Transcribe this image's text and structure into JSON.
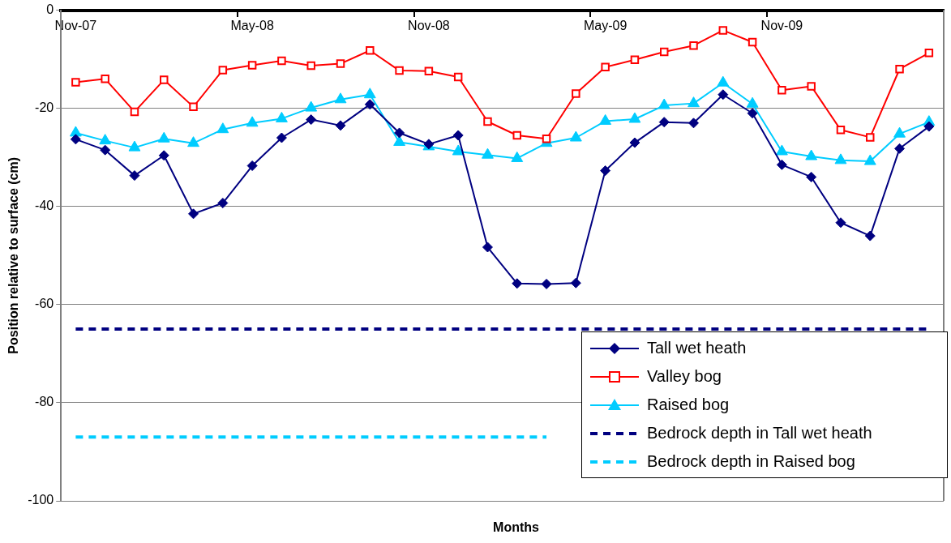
{
  "chart_data": {
    "type": "line",
    "xlabel": "Months",
    "ylabel": "Position relative to surface (cm)",
    "categories": [
      "Nov-07",
      null,
      null,
      null,
      null,
      null,
      "May-08",
      null,
      null,
      null,
      null,
      null,
      "Nov-08",
      null,
      null,
      null,
      null,
      null,
      "May-09",
      null,
      null,
      null,
      null,
      null,
      "Nov-09",
      null,
      null,
      null,
      null,
      null
    ],
    "series": [
      {
        "name": "Tall wet heath",
        "color": "#000080",
        "marker": "diamond",
        "values": [
          -26.3,
          -28.5,
          -33.7,
          -29.6,
          -41.5,
          -39.3,
          -31.7,
          -26,
          -22.3,
          -23.5,
          -19.2,
          -25,
          -27.3,
          -25.5,
          -48.3,
          -55.7,
          -55.8,
          -55.6,
          -32.7,
          -27,
          -22.8,
          -23,
          -17.2,
          -21,
          -31.5,
          -34,
          -43.3,
          -46,
          -28.2,
          -23.7
        ]
      },
      {
        "name": "Valley bog",
        "color": "#ff0000",
        "marker": "square",
        "values": [
          -14.7,
          -14,
          -20.7,
          -14.2,
          -19.7,
          -12.2,
          -11.2,
          -10.3,
          -11.3,
          -10.9,
          -8.2,
          -12.3,
          -12.4,
          -13.6,
          -22.7,
          -25.5,
          -26.2,
          -17,
          -11.6,
          -10.1,
          -8.5,
          -7.2,
          -4.1,
          -6.5,
          -16.3,
          -15.5,
          -24.4,
          -25.9,
          -12,
          -8.7
        ]
      },
      {
        "name": "Raised bog",
        "color": "#00ccff",
        "marker": "triangle",
        "values": [
          -25,
          -26.6,
          -28,
          -26.2,
          -27.1,
          -24.3,
          -23,
          -22.1,
          -19.9,
          -18.2,
          -17.2,
          -26.9,
          -27.8,
          -28.8,
          -29.5,
          -30.2,
          -27.1,
          -26,
          -22.6,
          -22.2,
          -19.4,
          -19,
          -14.8,
          -19.1,
          -28.8,
          -29.8,
          -30.6,
          -30.8,
          -25.2,
          -22.8
        ]
      },
      {
        "name": "Bedrock depth in Tall wet heath",
        "color": "#000080",
        "marker": "none",
        "line_style": "dashed",
        "values": [
          -65,
          -65,
          -65,
          -65,
          -65,
          -65,
          -65,
          -65,
          -65,
          -65,
          -65,
          -65,
          -65,
          -65,
          -65,
          -65,
          -65,
          -65,
          -65,
          -65,
          -65,
          -65,
          -65,
          -65,
          -65,
          -65,
          -65,
          -65,
          -65,
          -65
        ]
      },
      {
        "name": "Bedrock depth in Raised bog",
        "color": "#00ccff",
        "marker": "none",
        "line_style": "dashed",
        "values": [
          -87,
          -87,
          -87,
          -87,
          -87,
          -87,
          -87,
          -87,
          -87,
          -87,
          -87,
          -87,
          -87,
          -87,
          -87,
          -87,
          -87,
          null,
          null,
          null,
          null,
          null,
          null,
          null,
          null,
          null,
          null,
          null,
          null,
          null
        ]
      }
    ],
    "ylim": [
      -100,
      0
    ],
    "yticks": [
      -100,
      -80,
      -60,
      -40,
      -20,
      0
    ],
    "grid": "y",
    "legend": "bottom right"
  }
}
